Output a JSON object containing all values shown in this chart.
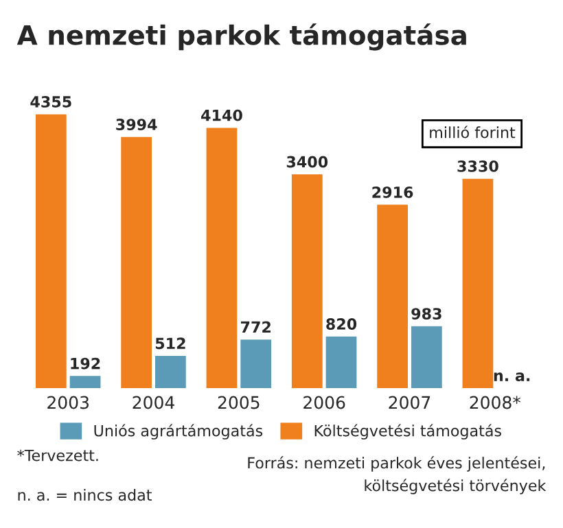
{
  "chart_data": {
    "type": "bar",
    "title": "A nemzeti parkok támogatása",
    "categories": [
      "2003",
      "2004",
      "2005",
      "2006",
      "2007",
      "2008*"
    ],
    "series": [
      {
        "name": "Költségvetési támogatás",
        "color": "#f07f1e",
        "values": [
          4355,
          3994,
          4140,
          3400,
          2916,
          3330
        ]
      },
      {
        "name": "Uniós agrártámogatás",
        "color": "#5b9bb8",
        "values": [
          192,
          512,
          772,
          820,
          983,
          null
        ]
      }
    ],
    "data_labels": true,
    "legend": "bottom",
    "grid": false,
    "annotations": [
      "millió forint",
      {
        "text": "n. a.",
        "x": "2008*",
        "y": 0
      },
      "*Tervezett.",
      "n. a. = nincs adat",
      "Forrás: nemzeti parkok éves jelentései,\nköltségvetési törvények"
    ]
  }
}
